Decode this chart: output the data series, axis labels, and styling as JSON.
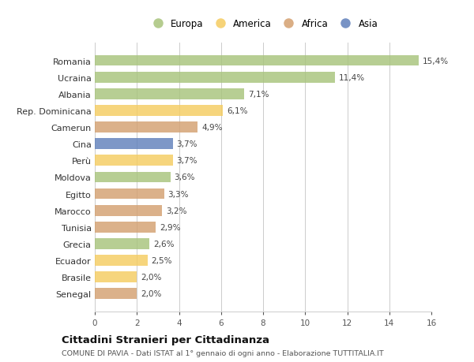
{
  "countries": [
    "Romania",
    "Ucraina",
    "Albania",
    "Rep. Dominicana",
    "Camerun",
    "Cina",
    "Perù",
    "Moldova",
    "Egitto",
    "Marocco",
    "Tunisia",
    "Grecia",
    "Ecuador",
    "Brasile",
    "Senegal"
  ],
  "values": [
    15.4,
    11.4,
    7.1,
    6.1,
    4.9,
    3.7,
    3.7,
    3.6,
    3.3,
    3.2,
    2.9,
    2.6,
    2.5,
    2.0,
    2.0
  ],
  "labels": [
    "15,4%",
    "11,4%",
    "7,1%",
    "6,1%",
    "4,9%",
    "3,7%",
    "3,7%",
    "3,6%",
    "3,3%",
    "3,2%",
    "2,9%",
    "2,6%",
    "2,5%",
    "2,0%",
    "2,0%"
  ],
  "continents": [
    "Europa",
    "Europa",
    "Europa",
    "America",
    "Africa",
    "Asia",
    "America",
    "Europa",
    "Africa",
    "Africa",
    "Africa",
    "Europa",
    "America",
    "America",
    "Africa"
  ],
  "colors": {
    "Europa": "#a8c47c",
    "America": "#f5cc60",
    "Africa": "#d4a070",
    "Asia": "#6080bb"
  },
  "legend_order": [
    "Europa",
    "America",
    "Africa",
    "Asia"
  ],
  "title": "Cittadini Stranieri per Cittadinanza",
  "subtitle": "COMUNE DI PAVIA - Dati ISTAT al 1° gennaio di ogni anno - Elaborazione TUTTITALIA.IT",
  "xlim": [
    0,
    16
  ],
  "xticks": [
    0,
    2,
    4,
    6,
    8,
    10,
    12,
    14,
    16
  ],
  "background_color": "#ffffff",
  "grid_color": "#cccccc",
  "bar_height": 0.65
}
